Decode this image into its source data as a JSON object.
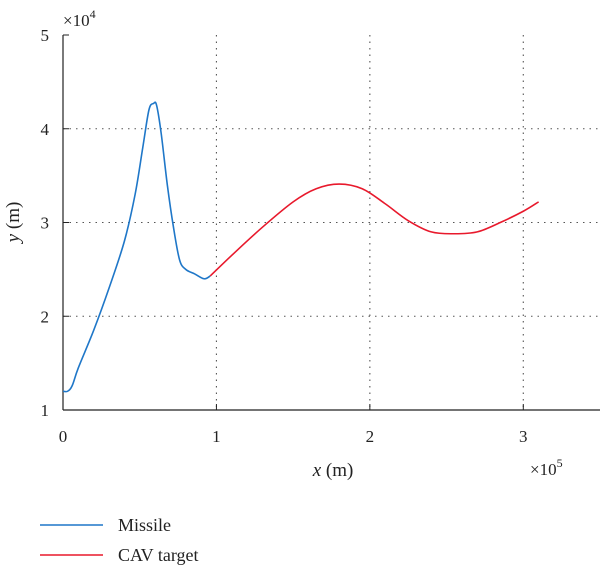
{
  "chart_data": {
    "type": "line",
    "xlabel_var": "x",
    "xlabel_unit": " (m)",
    "ylabel_var": "y",
    "ylabel_unit": " (m)",
    "x_multiplier": "×10",
    "x_multiplier_exp": "5",
    "y_multiplier": "×10",
    "y_multiplier_exp": "4",
    "xlim": [
      0,
      3.5
    ],
    "ylim": [
      1,
      5
    ],
    "x_ticks": [
      0,
      1,
      2,
      3
    ],
    "y_ticks": [
      1,
      2,
      3,
      4,
      5
    ],
    "x_tick_labels": [
      "0",
      "1",
      "2",
      "3"
    ],
    "y_tick_labels": [
      "1",
      "2",
      "3",
      "4",
      "5"
    ],
    "grid": "dotted",
    "legend_position": "bottom-left",
    "series": [
      {
        "name": "Missile",
        "color": "#1f77c8",
        "x": [
          0.0,
          0.03,
          0.06,
          0.1,
          0.2,
          0.3,
          0.4,
          0.47,
          0.52,
          0.56,
          0.59,
          0.61,
          0.64,
          0.68,
          0.72,
          0.76,
          0.8,
          0.86,
          0.92,
          0.96
        ],
        "y": [
          1.2,
          1.2,
          1.26,
          1.45,
          1.85,
          2.3,
          2.8,
          3.3,
          3.8,
          4.2,
          4.27,
          4.25,
          3.95,
          3.4,
          2.95,
          2.6,
          2.5,
          2.45,
          2.4,
          2.43
        ]
      },
      {
        "name": "CAV target",
        "color": "#e8192c",
        "x": [
          0.96,
          1.1,
          1.3,
          1.5,
          1.65,
          1.8,
          1.95,
          2.1,
          2.25,
          2.4,
          2.55,
          2.7,
          2.85,
          3.0,
          3.1
        ],
        "y": [
          2.43,
          2.65,
          2.95,
          3.22,
          3.36,
          3.41,
          3.36,
          3.2,
          3.02,
          2.9,
          2.88,
          2.9,
          3.0,
          3.12,
          3.22
        ]
      }
    ]
  }
}
